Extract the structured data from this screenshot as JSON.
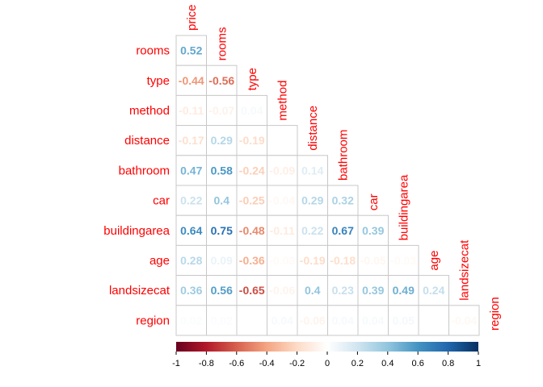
{
  "chart_data": {
    "type": "heatmap",
    "variables": [
      "price",
      "rooms",
      "type",
      "method",
      "distance",
      "bathroom",
      "car",
      "buildingarea",
      "age",
      "landsizecat",
      "region"
    ],
    "rows": [
      {
        "label": "rooms",
        "values": [
          0.52
        ]
      },
      {
        "label": "type",
        "values": [
          -0.44,
          -0.56
        ]
      },
      {
        "label": "method",
        "values": [
          -0.11,
          -0.07,
          0.04
        ]
      },
      {
        "label": "distance",
        "values": [
          -0.17,
          0.29,
          -0.19,
          null
        ]
      },
      {
        "label": "bathroom",
        "values": [
          0.47,
          0.58,
          -0.24,
          -0.09,
          0.14
        ]
      },
      {
        "label": "car",
        "values": [
          0.22,
          0.4,
          -0.25,
          -0.04,
          0.29,
          0.32
        ]
      },
      {
        "label": "buildingarea",
        "values": [
          0.64,
          0.75,
          -0.48,
          -0.11,
          0.22,
          0.67,
          0.39
        ]
      },
      {
        "label": "age",
        "values": [
          0.28,
          0.09,
          -0.36,
          -0.03,
          -0.19,
          -0.18,
          -0.05,
          -0.03
        ]
      },
      {
        "label": "landsizecat",
        "values": [
          0.36,
          0.56,
          -0.65,
          -0.06,
          0.4,
          0.23,
          0.39,
          0.49,
          0.24
        ]
      },
      {
        "label": "region",
        "values": [
          0.02,
          0.02,
          null,
          0.04,
          -0.06,
          0.04,
          0.04,
          0.05,
          null,
          -0.04
        ]
      }
    ],
    "display_labels": [
      [
        "0.52"
      ],
      [
        "-0.44",
        "-0.56"
      ],
      [
        "-0.11",
        "-0.07",
        "0.04"
      ],
      [
        "-0.17",
        "0.29",
        "-0.19",
        ""
      ],
      [
        "0.47",
        "0.58",
        "-0.24",
        "-0.09",
        "0.14"
      ],
      [
        "0.22",
        "0.4",
        "-0.25",
        "-0.04",
        "0.29",
        "0.32"
      ],
      [
        "0.64",
        "0.75",
        "-0.48",
        "-0.11",
        "0.22",
        "0.67",
        "0.39"
      ],
      [
        "0.28",
        "0.09",
        "-0.36",
        "-0.03",
        "-0.19",
        "-0.18",
        "-0.05",
        "-0.03"
      ],
      [
        "0.36",
        "0.56",
        "-0.65",
        "-0.06",
        "0.4",
        "0.23",
        "0.39",
        "0.49",
        "0.24"
      ],
      [
        "0.02",
        "0.02",
        "",
        "0.04",
        "-0.06",
        "0.04",
        "0.04",
        "0.05",
        "",
        "-0.04"
      ]
    ],
    "colorbar": {
      "range": [
        -1,
        1
      ],
      "ticks": [
        "-1",
        "-0.8",
        "-0.6",
        "-0.4",
        "-0.2",
        "0",
        "0.2",
        "0.4",
        "0.6",
        "0.8",
        "1"
      ],
      "tick_values": [
        -1,
        -0.8,
        -0.6,
        -0.4,
        -0.2,
        0,
        0.2,
        0.4,
        0.6,
        0.8,
        1
      ],
      "placement": "bottom"
    },
    "colors": {
      "scale": [
        "#67001f",
        "#b2182b",
        "#d6604d",
        "#f4a582",
        "#fddbc7",
        "#ffffff",
        "#d1e5f0",
        "#92c5de",
        "#4393c3",
        "#2166ac",
        "#053061"
      ],
      "label_color": "#ff0000",
      "grid": "#c8c8c8"
    }
  }
}
